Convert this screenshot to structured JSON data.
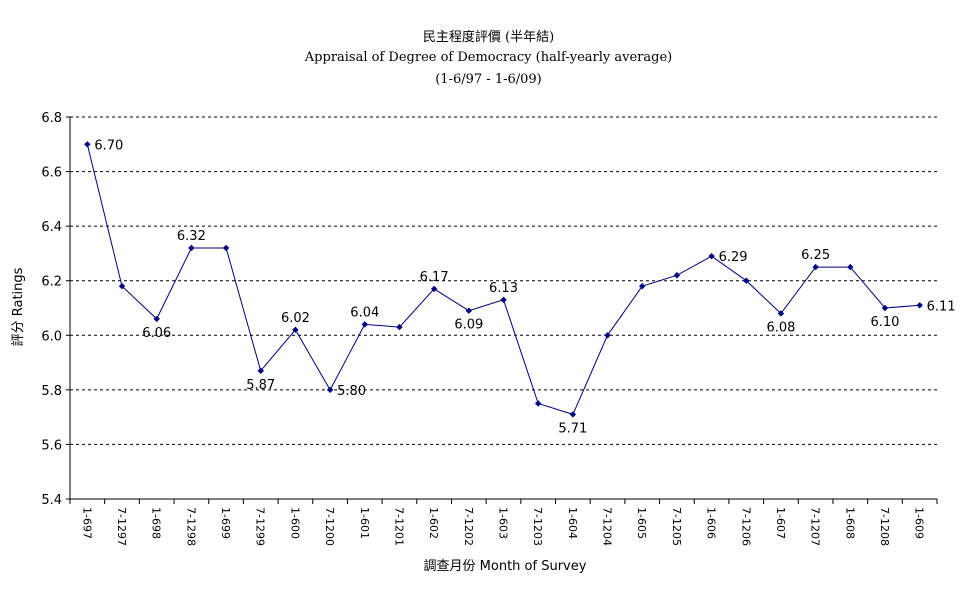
{
  "chart_data": {
    "type": "line",
    "title": "民主程度評價 (半年結)",
    "subtitle": "Appraisal of Degree of Democracy (half-yearly average)",
    "subtitle2": "(1-6/97 - 1-6/09)",
    "xlabel": "調查月份 Month of Survey",
    "ylabel": "評分 Ratings",
    "ylim": [
      5.4,
      6.8
    ],
    "yticks": [
      "5.4",
      "5.6",
      "5.8",
      "6.0",
      "6.2",
      "6.4",
      "6.6",
      "6.8"
    ],
    "grid": "horizontal-dashed",
    "categories": [
      "1-697",
      "7-1297",
      "1-698",
      "7-1298",
      "1-699",
      "7-1299",
      "1-600",
      "7-1200",
      "1-601",
      "7-1201",
      "1-602",
      "7-1202",
      "1-603",
      "7-1203",
      "1-604",
      "7-1204",
      "1-605",
      "7-1205",
      "1-606",
      "7-1206",
      "1-607",
      "7-1207",
      "1-608",
      "7-1208",
      "1-609"
    ],
    "series": [
      {
        "values": [
          6.7,
          6.18,
          6.06,
          6.32,
          6.32,
          5.87,
          6.02,
          5.8,
          6.04,
          6.03,
          6.17,
          6.09,
          6.13,
          5.75,
          5.71,
          6.0,
          6.18,
          6.22,
          6.29,
          6.2,
          6.08,
          6.25,
          6.25,
          6.1,
          6.11
        ]
      }
    ],
    "data_labels": [
      {
        "index": 0,
        "text": "6.70",
        "pos": "right"
      },
      {
        "index": 2,
        "text": "6.06",
        "pos": "below"
      },
      {
        "index": 3,
        "text": "6.32",
        "pos": "above"
      },
      {
        "index": 5,
        "text": "5.87",
        "pos": "below"
      },
      {
        "index": 6,
        "text": "6.02",
        "pos": "above"
      },
      {
        "index": 7,
        "text": "5.80",
        "pos": "right"
      },
      {
        "index": 8,
        "text": "6.04",
        "pos": "above"
      },
      {
        "index": 10,
        "text": "6.17",
        "pos": "above"
      },
      {
        "index": 11,
        "text": "6.09",
        "pos": "below"
      },
      {
        "index": 12,
        "text": "6.13",
        "pos": "above"
      },
      {
        "index": 14,
        "text": "5.71",
        "pos": "below"
      },
      {
        "index": 18,
        "text": "6.29",
        "pos": "right"
      },
      {
        "index": 20,
        "text": "6.08",
        "pos": "below"
      },
      {
        "index": 21,
        "text": "6.25",
        "pos": "above"
      },
      {
        "index": 23,
        "text": "6.10",
        "pos": "below"
      },
      {
        "index": 24,
        "text": "6.11",
        "pos": "right"
      }
    ],
    "colors": {
      "line": "#000080",
      "marker": "#000080",
      "grid": "#000000"
    }
  }
}
